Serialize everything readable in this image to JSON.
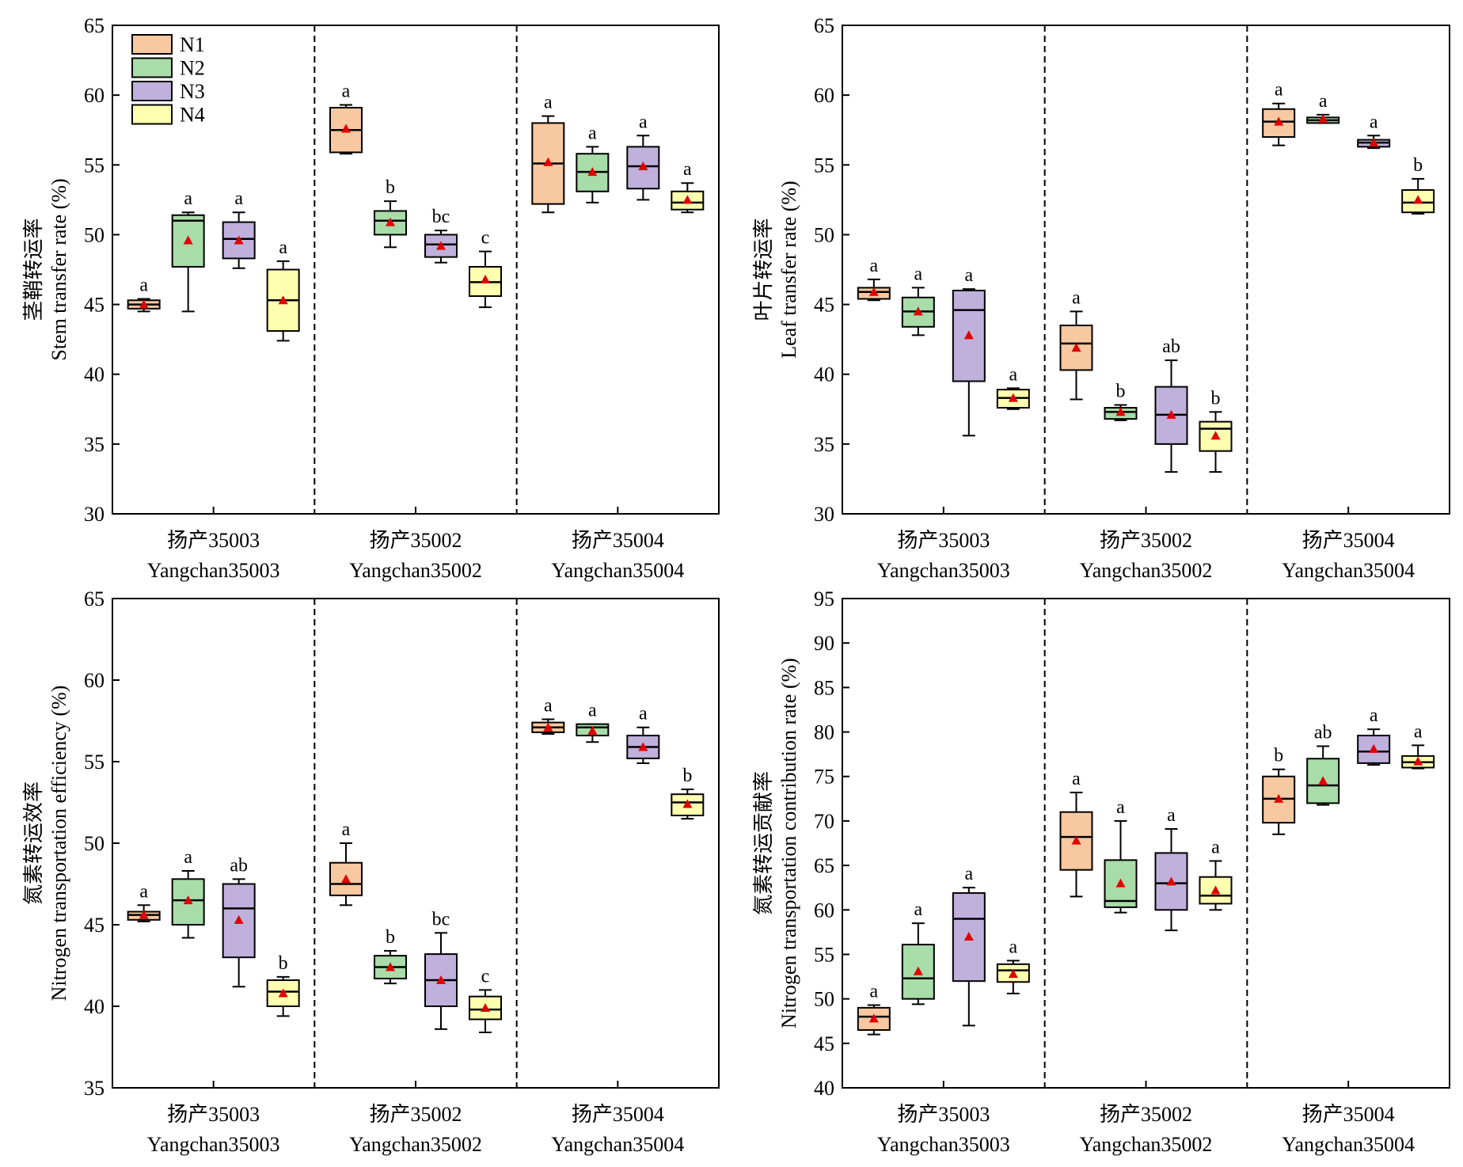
{
  "figure": {
    "legend_labels": [
      "N1",
      "N2",
      "N3",
      "N4"
    ],
    "colors": {
      "N1": "#f8c8a0",
      "N2": "#a8dca8",
      "N3": "#c0b0dc",
      "N4": "#ffffb0",
      "mean_marker": "#e00000",
      "axis": "#000000"
    },
    "groups": [
      {
        "cn": "扬产35003",
        "en": "Yangchan35003"
      },
      {
        "cn": "扬产35002",
        "en": "Yangchan35002"
      },
      {
        "cn": "扬产35004",
        "en": "Yangchan35004"
      }
    ]
  },
  "chart_data": [
    {
      "type": "box",
      "ylabel_cn": "茎鞘转运率",
      "ylabel_en": "Stem transfer rate (%)",
      "ylim": [
        30,
        65
      ],
      "yticks": [
        30,
        35,
        40,
        45,
        50,
        55,
        60,
        65
      ],
      "legend": "top-left",
      "boxes": [
        {
          "group": 0,
          "series": "N1",
          "min": 44.5,
          "q1": 44.7,
          "median": 45.0,
          "q3": 45.3,
          "max": 45.4,
          "mean": 45.0,
          "letter": "a"
        },
        {
          "group": 0,
          "series": "N2",
          "min": 44.5,
          "q1": 47.7,
          "median": 51.0,
          "q3": 51.4,
          "max": 51.6,
          "mean": 49.6,
          "letter": "a"
        },
        {
          "group": 0,
          "series": "N3",
          "min": 47.6,
          "q1": 48.3,
          "median": 49.7,
          "q3": 50.9,
          "max": 51.6,
          "mean": 49.6,
          "letter": "a"
        },
        {
          "group": 0,
          "series": "N4",
          "min": 42.4,
          "q1": 43.1,
          "median": 45.3,
          "q3": 47.5,
          "max": 48.1,
          "mean": 45.3,
          "letter": "a"
        },
        {
          "group": 1,
          "series": "N1",
          "min": 55.8,
          "q1": 55.9,
          "median": 57.5,
          "q3": 59.1,
          "max": 59.3,
          "mean": 57.6,
          "letter": "a"
        },
        {
          "group": 1,
          "series": "N2",
          "min": 49.1,
          "q1": 50.0,
          "median": 51.0,
          "q3": 51.7,
          "max": 52.4,
          "mean": 50.9,
          "letter": "b"
        },
        {
          "group": 1,
          "series": "N3",
          "min": 48.0,
          "q1": 48.4,
          "median": 49.3,
          "q3": 50.0,
          "max": 50.3,
          "mean": 49.2,
          "letter": "bc"
        },
        {
          "group": 1,
          "series": "N4",
          "min": 44.8,
          "q1": 45.6,
          "median": 46.6,
          "q3": 47.7,
          "max": 48.8,
          "mean": 46.8,
          "letter": "c"
        },
        {
          "group": 2,
          "series": "N1",
          "min": 51.6,
          "q1": 52.2,
          "median": 55.1,
          "q3": 58.0,
          "max": 58.5,
          "mean": 55.2,
          "letter": "a"
        },
        {
          "group": 2,
          "series": "N2",
          "min": 52.3,
          "q1": 53.1,
          "median": 54.5,
          "q3": 55.8,
          "max": 56.3,
          "mean": 54.5,
          "letter": "a"
        },
        {
          "group": 2,
          "series": "N3",
          "min": 52.5,
          "q1": 53.3,
          "median": 54.9,
          "q3": 56.3,
          "max": 57.1,
          "mean": 54.9,
          "letter": "a"
        },
        {
          "group": 2,
          "series": "N4",
          "min": 51.6,
          "q1": 51.8,
          "median": 52.3,
          "q3": 53.1,
          "max": 53.7,
          "mean": 52.5,
          "letter": "a"
        }
      ]
    },
    {
      "type": "box",
      "ylabel_cn": "叶片转运率",
      "ylabel_en": "Leaf transfer rate (%)",
      "ylim": [
        30,
        65
      ],
      "yticks": [
        30,
        35,
        40,
        45,
        50,
        55,
        60,
        65
      ],
      "boxes": [
        {
          "group": 0,
          "series": "N1",
          "min": 45.3,
          "q1": 45.4,
          "median": 45.9,
          "q3": 46.2,
          "max": 46.8,
          "mean": 45.9,
          "letter": "a"
        },
        {
          "group": 0,
          "series": "N2",
          "min": 42.8,
          "q1": 43.4,
          "median": 44.5,
          "q3": 45.5,
          "max": 46.2,
          "mean": 44.5,
          "letter": "a"
        },
        {
          "group": 0,
          "series": "N3",
          "min": 35.6,
          "q1": 39.5,
          "median": 44.6,
          "q3": 46.0,
          "max": 46.1,
          "mean": 42.8,
          "letter": "a"
        },
        {
          "group": 0,
          "series": "N4",
          "min": 37.5,
          "q1": 37.6,
          "median": 38.3,
          "q3": 38.9,
          "max": 39.0,
          "mean": 38.3,
          "letter": "a"
        },
        {
          "group": 1,
          "series": "N1",
          "min": 38.2,
          "q1": 40.3,
          "median": 42.2,
          "q3": 43.5,
          "max": 44.5,
          "mean": 41.9,
          "letter": "a"
        },
        {
          "group": 1,
          "series": "N2",
          "min": 36.7,
          "q1": 36.8,
          "median": 37.3,
          "q3": 37.6,
          "max": 37.8,
          "mean": 37.3,
          "letter": "b"
        },
        {
          "group": 1,
          "series": "N3",
          "min": 33.0,
          "q1": 35.0,
          "median": 37.1,
          "q3": 39.1,
          "max": 41.0,
          "mean": 37.1,
          "letter": "ab"
        },
        {
          "group": 1,
          "series": "N4",
          "min": 33.0,
          "q1": 34.5,
          "median": 36.1,
          "q3": 36.6,
          "max": 37.3,
          "mean": 35.6,
          "letter": "b"
        },
        {
          "group": 2,
          "series": "N1",
          "min": 56.4,
          "q1": 57.0,
          "median": 58.1,
          "q3": 59.0,
          "max": 59.4,
          "mean": 58.1,
          "letter": "a"
        },
        {
          "group": 2,
          "series": "N2",
          "min": 58.0,
          "q1": 58.0,
          "median": 58.2,
          "q3": 58.4,
          "max": 58.6,
          "mean": 58.3,
          "letter": "a"
        },
        {
          "group": 2,
          "series": "N3",
          "min": 56.2,
          "q1": 56.3,
          "median": 56.6,
          "q3": 56.8,
          "max": 57.1,
          "mean": 56.6,
          "letter": "a"
        },
        {
          "group": 2,
          "series": "N4",
          "min": 51.5,
          "q1": 51.6,
          "median": 52.3,
          "q3": 53.2,
          "max": 54.0,
          "mean": 52.5,
          "letter": "b"
        }
      ]
    },
    {
      "type": "box",
      "ylabel_cn": "氮素转运效率",
      "ylabel_en": "Nitrogen transportation efficiency (%)",
      "ylim": [
        35,
        65
      ],
      "yticks": [
        35,
        40,
        45,
        50,
        55,
        60,
        65
      ],
      "boxes": [
        {
          "group": 0,
          "series": "N1",
          "min": 45.2,
          "q1": 45.3,
          "median": 45.6,
          "q3": 45.8,
          "max": 46.2,
          "mean": 45.6,
          "letter": "a"
        },
        {
          "group": 0,
          "series": "N2",
          "min": 44.2,
          "q1": 45.0,
          "median": 46.5,
          "q3": 47.8,
          "max": 48.3,
          "mean": 46.5,
          "letter": "a"
        },
        {
          "group": 0,
          "series": "N3",
          "min": 41.2,
          "q1": 43.0,
          "median": 46.0,
          "q3": 47.5,
          "max": 47.8,
          "mean": 45.3,
          "letter": "ab"
        },
        {
          "group": 0,
          "series": "N4",
          "min": 39.4,
          "q1": 40.0,
          "median": 40.9,
          "q3": 41.6,
          "max": 41.8,
          "mean": 40.8,
          "letter": "b"
        },
        {
          "group": 1,
          "series": "N1",
          "min": 46.2,
          "q1": 46.8,
          "median": 47.5,
          "q3": 48.8,
          "max": 50.0,
          "mean": 47.8,
          "letter": "a"
        },
        {
          "group": 1,
          "series": "N2",
          "min": 41.4,
          "q1": 41.7,
          "median": 42.4,
          "q3": 43.1,
          "max": 43.4,
          "mean": 42.4,
          "letter": "b"
        },
        {
          "group": 1,
          "series": "N3",
          "min": 38.6,
          "q1": 40.0,
          "median": 41.6,
          "q3": 43.2,
          "max": 44.5,
          "mean": 41.6,
          "letter": "bc"
        },
        {
          "group": 1,
          "series": "N4",
          "min": 38.4,
          "q1": 39.2,
          "median": 39.8,
          "q3": 40.6,
          "max": 41.0,
          "mean": 39.9,
          "letter": "c"
        },
        {
          "group": 2,
          "series": "N1",
          "min": 56.7,
          "q1": 56.8,
          "median": 57.1,
          "q3": 57.4,
          "max": 57.6,
          "mean": 57.1,
          "letter": "a"
        },
        {
          "group": 2,
          "series": "N2",
          "min": 56.2,
          "q1": 56.6,
          "median": 57.1,
          "q3": 57.3,
          "max": 57.3,
          "mean": 56.9,
          "letter": "a"
        },
        {
          "group": 2,
          "series": "N3",
          "min": 54.9,
          "q1": 55.2,
          "median": 55.9,
          "q3": 56.6,
          "max": 57.1,
          "mean": 55.9,
          "letter": "a"
        },
        {
          "group": 2,
          "series": "N4",
          "min": 51.5,
          "q1": 51.7,
          "median": 52.5,
          "q3": 53.0,
          "max": 53.3,
          "mean": 52.4,
          "letter": "b"
        }
      ]
    },
    {
      "type": "box",
      "ylabel_cn": "氮素转运贡献率",
      "ylabel_en": "Nitrogen transportation contribution rate (%)",
      "ylim": [
        40,
        95
      ],
      "yticks": [
        40,
        45,
        50,
        55,
        60,
        65,
        70,
        75,
        80,
        85,
        90,
        95
      ],
      "boxes": [
        {
          "group": 0,
          "series": "N1",
          "min": 46.0,
          "q1": 46.5,
          "median": 48.0,
          "q3": 49.0,
          "max": 49.3,
          "mean": 47.8,
          "letter": "a"
        },
        {
          "group": 0,
          "series": "N2",
          "min": 49.4,
          "q1": 50.0,
          "median": 52.3,
          "q3": 56.1,
          "max": 58.5,
          "mean": 53.1,
          "letter": "a"
        },
        {
          "group": 0,
          "series": "N3",
          "min": 47.0,
          "q1": 52.0,
          "median": 59.0,
          "q3": 61.9,
          "max": 62.5,
          "mean": 57.0,
          "letter": "a"
        },
        {
          "group": 0,
          "series": "N4",
          "min": 50.6,
          "q1": 51.9,
          "median": 53.2,
          "q3": 53.9,
          "max": 54.3,
          "mean": 52.8,
          "letter": "a"
        },
        {
          "group": 1,
          "series": "N1",
          "min": 61.5,
          "q1": 64.5,
          "median": 68.2,
          "q3": 71.0,
          "max": 73.2,
          "mean": 67.8,
          "letter": "a"
        },
        {
          "group": 1,
          "series": "N2",
          "min": 59.7,
          "q1": 60.3,
          "median": 61.0,
          "q3": 65.6,
          "max": 70.0,
          "mean": 63.0,
          "letter": "a"
        },
        {
          "group": 1,
          "series": "N3",
          "min": 57.7,
          "q1": 60.0,
          "median": 63.0,
          "q3": 66.4,
          "max": 69.1,
          "mean": 63.2,
          "letter": "a"
        },
        {
          "group": 1,
          "series": "N4",
          "min": 60.0,
          "q1": 60.7,
          "median": 61.6,
          "q3": 63.7,
          "max": 65.5,
          "mean": 62.2,
          "letter": "a"
        },
        {
          "group": 2,
          "series": "N1",
          "min": 68.5,
          "q1": 69.8,
          "median": 72.5,
          "q3": 75.0,
          "max": 75.8,
          "mean": 72.5,
          "letter": "b"
        },
        {
          "group": 2,
          "series": "N2",
          "min": 71.8,
          "q1": 72.0,
          "median": 74.0,
          "q3": 77.0,
          "max": 78.4,
          "mean": 74.5,
          "letter": "ab"
        },
        {
          "group": 2,
          "series": "N3",
          "min": 76.3,
          "q1": 76.5,
          "median": 77.8,
          "q3": 79.6,
          "max": 80.3,
          "mean": 78.1,
          "letter": "a"
        },
        {
          "group": 2,
          "series": "N4",
          "min": 75.9,
          "q1": 76.0,
          "median": 76.6,
          "q3": 77.3,
          "max": 78.5,
          "mean": 76.7,
          "letter": "a"
        }
      ]
    }
  ]
}
